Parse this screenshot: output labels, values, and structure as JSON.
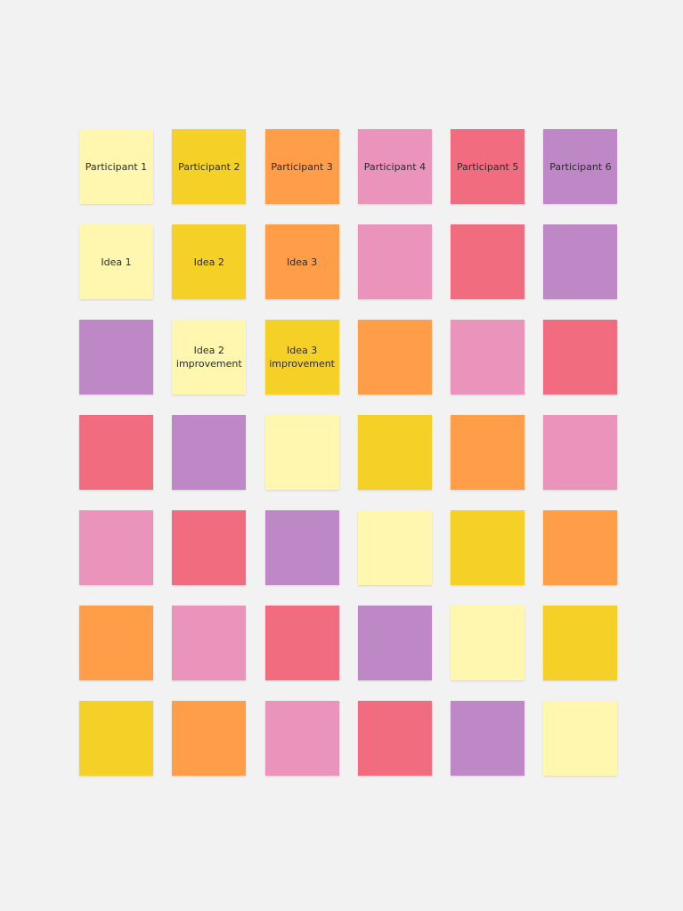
{
  "palette": {
    "light_yellow": "#FFF6B0",
    "yellow": "#F5D128",
    "orange": "#FF9D48",
    "pink": "#EA94BB",
    "red": "#F16C7F",
    "violet": "#BE88C7"
  },
  "rows": [
    [
      {
        "text": "Participant 1",
        "color": "#FFF6B0"
      },
      {
        "text": "Participant 2",
        "color": "#F5D128"
      },
      {
        "text": "Participant 3",
        "color": "#FF9D48"
      },
      {
        "text": "Participant 4",
        "color": "#EA94BB"
      },
      {
        "text": "Participant 5",
        "color": "#F16C7F"
      },
      {
        "text": "Participant 6",
        "color": "#BE88C7"
      }
    ],
    [
      {
        "text": "Idea 1",
        "color": "#FFF6B0"
      },
      {
        "text": "Idea 2",
        "color": "#F5D128"
      },
      {
        "text": "Idea 3",
        "color": "#FF9D48"
      },
      {
        "text": "",
        "color": "#EA94BB"
      },
      {
        "text": "",
        "color": "#F16C7F"
      },
      {
        "text": "",
        "color": "#BE88C7"
      }
    ],
    [
      {
        "text": "",
        "color": "#BE88C7"
      },
      {
        "text": "Idea 2 improvement",
        "color": "#FFF6B0"
      },
      {
        "text": "Idea 3 improvement",
        "color": "#F5D128"
      },
      {
        "text": "",
        "color": "#FF9D48"
      },
      {
        "text": "",
        "color": "#EA94BB"
      },
      {
        "text": "",
        "color": "#F16C7F"
      }
    ],
    [
      {
        "text": "",
        "color": "#F16C7F"
      },
      {
        "text": "",
        "color": "#BE88C7"
      },
      {
        "text": "",
        "color": "#FFF6B0"
      },
      {
        "text": "",
        "color": "#F5D128"
      },
      {
        "text": "",
        "color": "#FF9D48"
      },
      {
        "text": "",
        "color": "#EA94BB"
      }
    ],
    [
      {
        "text": "",
        "color": "#EA94BB"
      },
      {
        "text": "",
        "color": "#F16C7F"
      },
      {
        "text": "",
        "color": "#BE88C7"
      },
      {
        "text": "",
        "color": "#FFF6B0"
      },
      {
        "text": "",
        "color": "#F5D128"
      },
      {
        "text": "",
        "color": "#FF9D48"
      }
    ],
    [
      {
        "text": "",
        "color": "#FF9D48"
      },
      {
        "text": "",
        "color": "#EA94BB"
      },
      {
        "text": "",
        "color": "#F16C7F"
      },
      {
        "text": "",
        "color": "#BE88C7"
      },
      {
        "text": "",
        "color": "#FFF6B0"
      },
      {
        "text": "",
        "color": "#F5D128"
      }
    ],
    [
      {
        "text": "",
        "color": "#F5D128"
      },
      {
        "text": "",
        "color": "#FF9D48"
      },
      {
        "text": "",
        "color": "#EA94BB"
      },
      {
        "text": "",
        "color": "#F16C7F"
      },
      {
        "text": "",
        "color": "#BE88C7"
      },
      {
        "text": "",
        "color": "#FFF6B0"
      }
    ]
  ]
}
